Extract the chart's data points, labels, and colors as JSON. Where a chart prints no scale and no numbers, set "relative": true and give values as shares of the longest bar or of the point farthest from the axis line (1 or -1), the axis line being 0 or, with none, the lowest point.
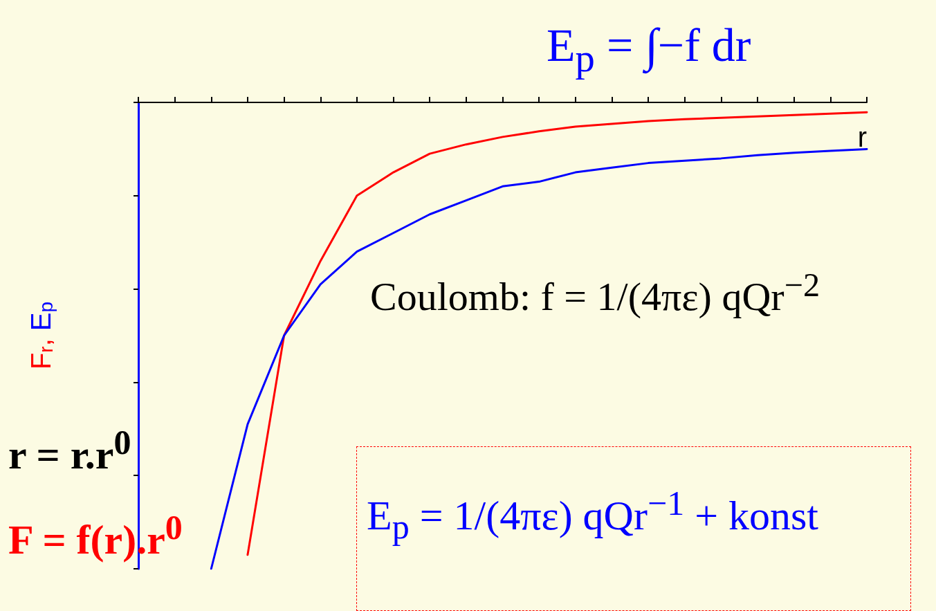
{
  "chart_data": {
    "type": "line",
    "relative": true,
    "xlabel": "r",
    "ylabel": "F$_{r}$, E$_{p}$",
    "categories": [
      null,
      null,
      null,
      null,
      null,
      null,
      null,
      null,
      null,
      null,
      null,
      null,
      null,
      null,
      null,
      null,
      null,
      null,
      null,
      null,
      null
    ],
    "series": [
      {
        "color": "#ff0000",
        "values": [
          null,
          null,
          null,
          -0.97,
          -0.5,
          -0.34,
          -0.2,
          -0.15,
          -0.11,
          -0.09,
          -0.074,
          -0.062,
          -0.052,
          -0.046,
          -0.04,
          -0.036,
          -0.033,
          -0.03,
          -0.027,
          -0.024,
          -0.021
        ]
      },
      {
        "color": "#0000ff",
        "values": [
          null,
          null,
          -1,
          -0.69,
          -0.5,
          -0.39,
          -0.32,
          -0.28,
          -0.24,
          -0.21,
          -0.18,
          -0.17,
          -0.15,
          -0.14,
          -0.13,
          -0.125,
          -0.12,
          -0.113,
          -0.108,
          -0.104,
          -0.1
        ]
      }
    ],
    "marker": "none",
    "line_style": "solid",
    "annotations": [
      "E$_{p}$ = ∫−f dr",
      "Coulomb: f = 1/(4πε) qQr$^{−2}$",
      "r = r.r$^{0}$",
      "F = f(r).r$^{0}$",
      "E$_{p}$ = 1/(4πε) qQr$^{−1}$ + konst"
    ]
  }
}
